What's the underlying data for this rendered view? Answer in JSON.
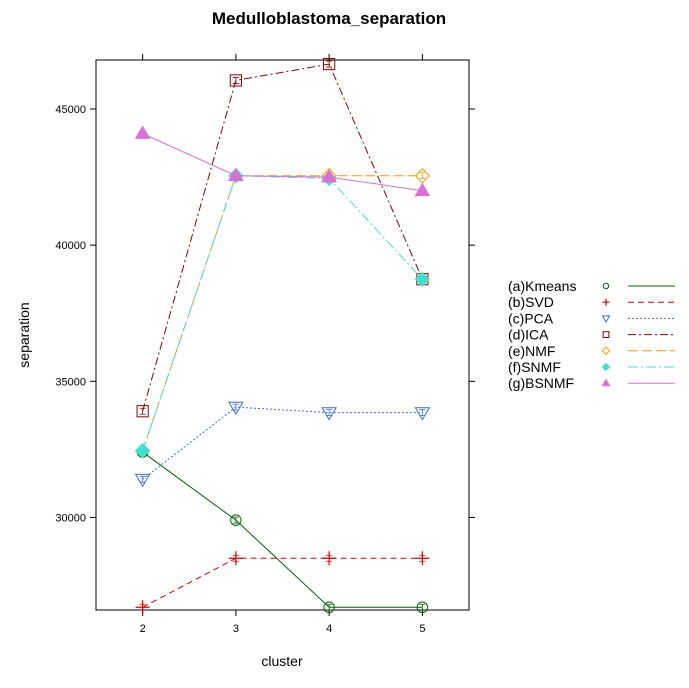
{
  "chart_data": {
    "type": "line",
    "title": "Medulloblastoma_separation",
    "xlabel": "cluster",
    "ylabel": "separation",
    "x": [
      2,
      3,
      4,
      5
    ],
    "x_ticks": [
      "2",
      "3",
      "4",
      "5"
    ],
    "xlim": [
      1.5,
      5.5
    ],
    "y_ticks": [
      30000,
      35000,
      40000,
      45000
    ],
    "y_tick_labels": [
      "30000",
      "35000",
      "40000",
      "45000"
    ],
    "ylim": [
      26600,
      46800
    ],
    "grid": false,
    "legend_position": "right",
    "series": [
      {
        "name": "(a)Kmeans",
        "values": [
          32400,
          29900,
          26700,
          26700
        ],
        "color": "#006400",
        "dash": "",
        "marker": "circle"
      },
      {
        "name": "(b)SVD",
        "values": [
          26700,
          28500,
          28500,
          28500
        ],
        "color": "#dd0000",
        "dash": "6,4",
        "marker": "plus"
      },
      {
        "name": "(c)PCA",
        "values": [
          31400,
          34050,
          33850,
          33850
        ],
        "color": "#3b6fd4",
        "dash": "2,2",
        "marker": "triangle-down"
      },
      {
        "name": "(d)ICA",
        "values": [
          33900,
          46050,
          46650,
          38750
        ],
        "color": "#8b0000",
        "dash": "8,3,2,3",
        "marker": "square"
      },
      {
        "name": "(e)NMF",
        "values": [
          32450,
          42550,
          42550,
          42550
        ],
        "color": "#ff9900",
        "dash": "10,4",
        "marker": "diamond"
      },
      {
        "name": "(f)SNMF",
        "values": [
          32450,
          42550,
          42450,
          38750
        ],
        "color": "#40e0d0",
        "dash": "10,3,2,3",
        "marker": "filled-diamond"
      },
      {
        "name": "(g)BSNMF",
        "values": [
          44100,
          42550,
          42500,
          42000
        ],
        "color": "#da70d6",
        "dash": "",
        "marker": "filled-triangle"
      }
    ]
  }
}
